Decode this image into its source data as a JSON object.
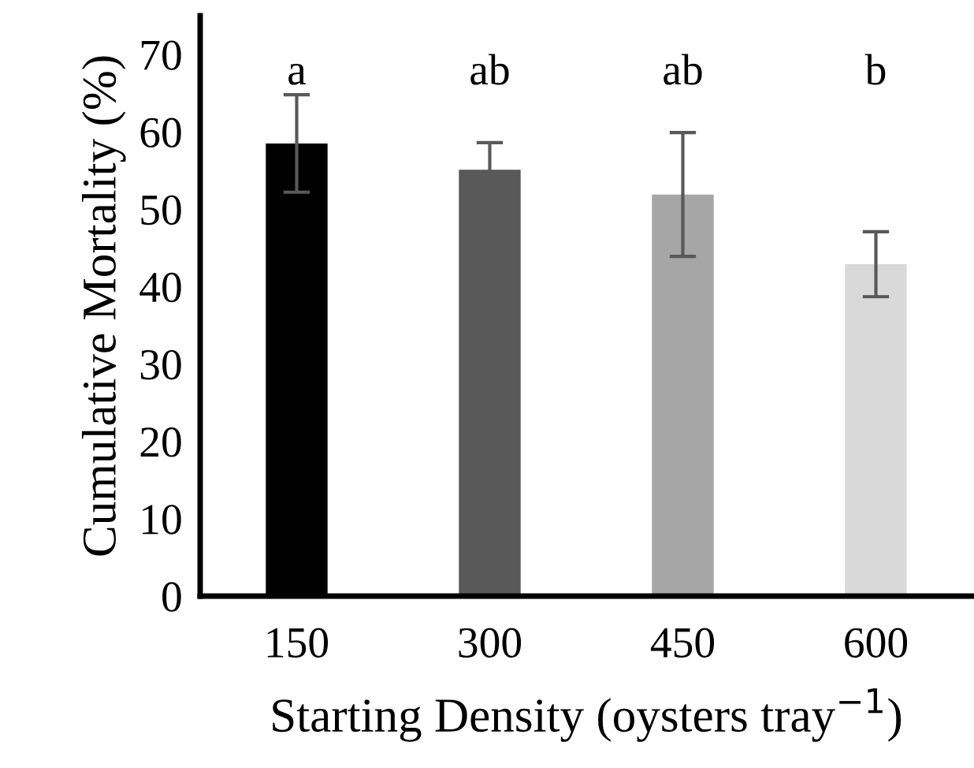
{
  "chart_data": {
    "type": "bar",
    "xlabel": "Starting Density (oysters tray$^{−1}$)",
    "ylabel": "Cumulative Mortality (%)",
    "categories": [
      "150",
      "300",
      "450",
      "600"
    ],
    "values": [
      58.5,
      55.1,
      51.9,
      42.9
    ],
    "colors": [
      "#000000",
      "#595959",
      "#a6a6a6",
      "#d9d9d9"
    ],
    "errors": [
      6.3,
      3.5,
      8,
      4.2
    ],
    "ylim": [
      0,
      75
    ],
    "yticks": [
      0,
      10,
      20,
      30,
      40,
      50,
      60,
      70
    ],
    "grid": false,
    "legend": false,
    "annotations": [
      "a",
      "ab",
      "ab",
      "b"
    ]
  }
}
